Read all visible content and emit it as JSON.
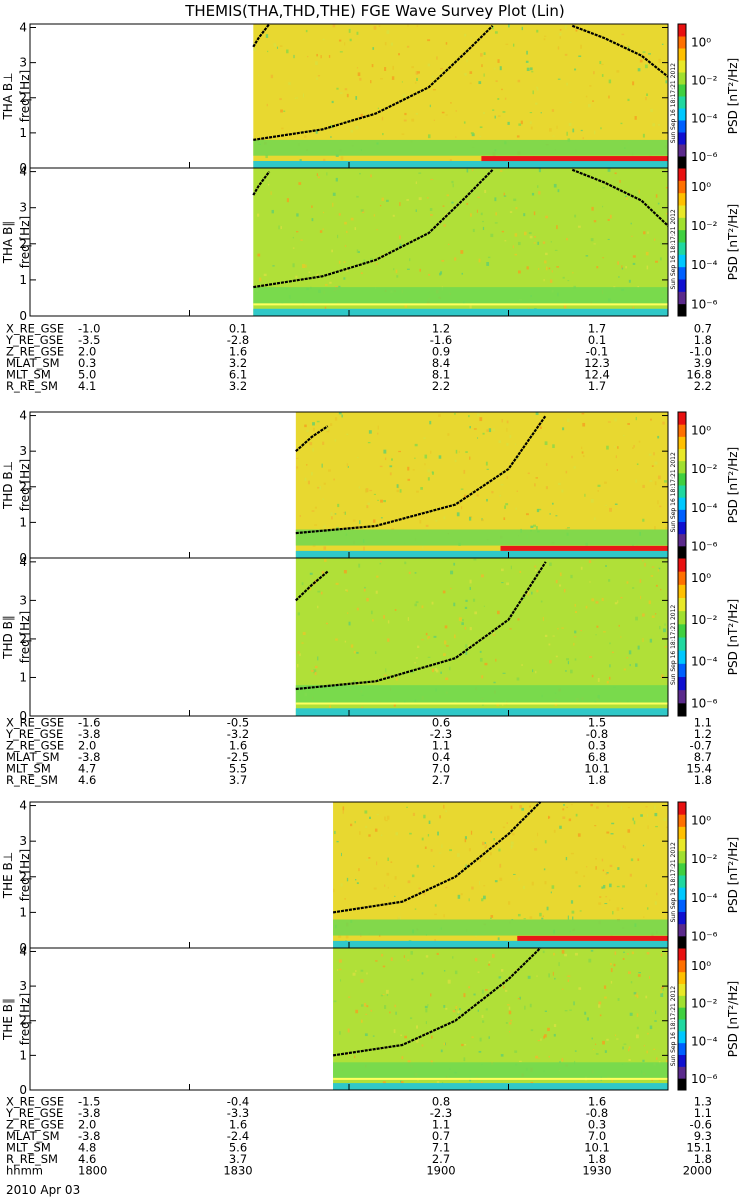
{
  "title": "THEMIS(THA,THD,THE) FGE Wave Survey Plot (Lin)",
  "stamp": "Sun Sep 16 18:17:21 2012",
  "colorbar": {
    "label": "PSD [nT²/Hz]",
    "ticks": [
      "10⁰",
      "10⁻²",
      "10⁻⁴",
      "10⁻⁶"
    ],
    "colors": [
      "#000000",
      "#5a2a8c",
      "#1010d0",
      "#0060ff",
      "#00c8ff",
      "#20d8a0",
      "#40d040",
      "#a0e030",
      "#e8e828",
      "#ffc000",
      "#ff7000",
      "#e81010"
    ]
  },
  "chart_data": {
    "type": "heatmap",
    "title": "THEMIS(THA,THD,THE) FGE Wave Survey Plot (Lin)",
    "xaxis": {
      "label": "hhmm",
      "ticks": [
        "1800",
        "1830",
        "1900",
        "1930",
        "2000"
      ],
      "range": [
        "18:00",
        "20:00"
      ],
      "date": "2010 Apr 03"
    },
    "yaxis": {
      "unit": "freq [Hz]",
      "range": [
        0,
        4.1
      ],
      "ticks": [
        "0",
        "1",
        "2",
        "3",
        "4"
      ]
    },
    "zaxis": {
      "label": "PSD [nT²/Hz]",
      "scale": "log",
      "range": [
        1e-07,
        10
      ]
    },
    "panels": [
      {
        "name": "THA B⊥",
        "ylabel": "freq [Hz]",
        "data_start": "18:42",
        "fill_color": "#e8d830",
        "curves": [
          {
            "t": [
              "18:42",
              "18:43",
              "18:45"
            ],
            "f": [
              3.45,
              3.7,
              4.1
            ]
          },
          {
            "t": [
              "18:42",
              "18:55",
              "19:05",
              "19:15",
              "19:22",
              "19:27"
            ],
            "f": [
              0.8,
              1.1,
              1.55,
              2.3,
              3.3,
              4.05
            ]
          },
          {
            "t": [
              "19:42",
              "19:48",
              "19:55",
              "20:00"
            ],
            "f": [
              4.05,
              3.7,
              3.2,
              2.6
            ]
          }
        ]
      },
      {
        "name": "THA B∥",
        "ylabel": "freq [Hz]",
        "data_start": "18:42",
        "fill_color": "#b0e038",
        "curves": [
          {
            "t": [
              "18:42",
              "18:43",
              "18:45"
            ],
            "f": [
              3.35,
              3.6,
              4.0
            ]
          },
          {
            "t": [
              "18:42",
              "18:55",
              "19:05",
              "19:15",
              "19:22",
              "19:27"
            ],
            "f": [
              0.8,
              1.1,
              1.55,
              2.3,
              3.3,
              4.05
            ]
          },
          {
            "t": [
              "19:42",
              "19:48",
              "19:55",
              "20:00"
            ],
            "f": [
              4.05,
              3.7,
              3.2,
              2.5
            ]
          }
        ]
      },
      {
        "name": "THD B⊥",
        "ylabel": "freq [Hz]",
        "data_start": "18:50",
        "fill_color": "#e8d830",
        "curves": [
          {
            "t": [
              "18:50",
              "18:53",
              "18:56"
            ],
            "f": [
              3.0,
              3.4,
              3.7
            ]
          },
          {
            "t": [
              "18:50",
              "19:05",
              "19:20",
              "19:30",
              "19:37"
            ],
            "f": [
              0.7,
              0.9,
              1.5,
              2.5,
              4.0
            ]
          }
        ]
      },
      {
        "name": "THD B∥",
        "ylabel": "freq [Hz]",
        "data_start": "18:50",
        "fill_color": "#b0e038",
        "curves": [
          {
            "t": [
              "18:50",
              "18:53",
              "18:56"
            ],
            "f": [
              3.0,
              3.4,
              3.75
            ]
          },
          {
            "t": [
              "18:50",
              "19:05",
              "19:20",
              "19:30",
              "19:37"
            ],
            "f": [
              0.7,
              0.9,
              1.5,
              2.5,
              4.0
            ]
          }
        ]
      },
      {
        "name": "THE B⊥",
        "ylabel": "freq [Hz]",
        "data_start": "18:57",
        "fill_color": "#e8d830",
        "curves": [
          {
            "t": [
              "18:57",
              "19:10",
              "19:20",
              "19:30",
              "19:36"
            ],
            "f": [
              1.0,
              1.3,
              2.0,
              3.2,
              4.1
            ]
          }
        ]
      },
      {
        "name": "THE B∥",
        "ylabel": "freq [Hz]",
        "data_start": "18:57",
        "fill_color": "#b0e038",
        "curves": [
          {
            "t": [
              "18:57",
              "19:10",
              "19:20",
              "19:30",
              "19:36"
            ],
            "f": [
              1.0,
              1.3,
              2.0,
              3.2,
              4.1
            ]
          }
        ]
      }
    ]
  },
  "ephemeris": [
    {
      "rows": [
        {
          "label": "X_RE_GSE",
          "values": [
            "-1.0",
            "0.1",
            "1.2",
            "1.7",
            "0.7"
          ]
        },
        {
          "label": "Y_RE_GSE",
          "values": [
            "-3.5",
            "-2.8",
            "-1.6",
            "0.1",
            "1.8"
          ]
        },
        {
          "label": "Z_RE_GSE",
          "values": [
            "2.0",
            "1.6",
            "0.9",
            "-0.1",
            "-1.0"
          ]
        },
        {
          "label": "MLAT_SM",
          "values": [
            "0.3",
            "3.2",
            "8.4",
            "12.3",
            "3.9"
          ]
        },
        {
          "label": "MLT_SM",
          "values": [
            "5.0",
            "6.1",
            "8.1",
            "12.4",
            "16.8"
          ]
        },
        {
          "label": "R_RE_SM",
          "values": [
            "4.1",
            "3.2",
            "2.2",
            "1.7",
            "2.2"
          ]
        }
      ]
    },
    {
      "rows": [
        {
          "label": "X_RE_GSE",
          "values": [
            "-1.6",
            "-0.5",
            "0.6",
            "1.5",
            "1.1"
          ]
        },
        {
          "label": "Y_RE_GSE",
          "values": [
            "-3.8",
            "-3.2",
            "-2.3",
            "-0.8",
            "1.2"
          ]
        },
        {
          "label": "Z_RE_GSE",
          "values": [
            "2.0",
            "1.6",
            "1.1",
            "0.3",
            "-0.7"
          ]
        },
        {
          "label": "MLAT_SM",
          "values": [
            "-3.8",
            "-2.5",
            "0.4",
            "6.8",
            "8.7"
          ]
        },
        {
          "label": "MLT_SM",
          "values": [
            "4.7",
            "5.5",
            "7.0",
            "10.1",
            "15.4"
          ]
        },
        {
          "label": "R_RE_SM",
          "values": [
            "4.6",
            "3.7",
            "2.7",
            "1.8",
            "1.8"
          ]
        }
      ]
    },
    {
      "rows": [
        {
          "label": "X_RE_GSE",
          "values": [
            "-1.5",
            "-0.4",
            "0.8",
            "1.6",
            "1.3"
          ]
        },
        {
          "label": "Y_RE_GSE",
          "values": [
            "-3.8",
            "-3.3",
            "-2.3",
            "-0.8",
            "1.1"
          ]
        },
        {
          "label": "Z_RE_GSE",
          "values": [
            "2.0",
            "1.6",
            "1.1",
            "0.3",
            "-0.6"
          ]
        },
        {
          "label": "MLAT_SM",
          "values": [
            "-3.8",
            "-2.4",
            "0.7",
            "7.0",
            "9.3"
          ]
        },
        {
          "label": "MLT_SM",
          "values": [
            "4.8",
            "5.6",
            "7.1",
            "10.1",
            "15.1"
          ]
        },
        {
          "label": "R_RE_SM",
          "values": [
            "4.6",
            "3.7",
            "2.7",
            "1.8",
            "1.8"
          ]
        },
        {
          "label": "hhmm",
          "values": [
            "1800",
            "1830",
            "1900",
            "1930",
            "2000"
          ]
        }
      ]
    }
  ],
  "date_label": "2010 Apr 03"
}
